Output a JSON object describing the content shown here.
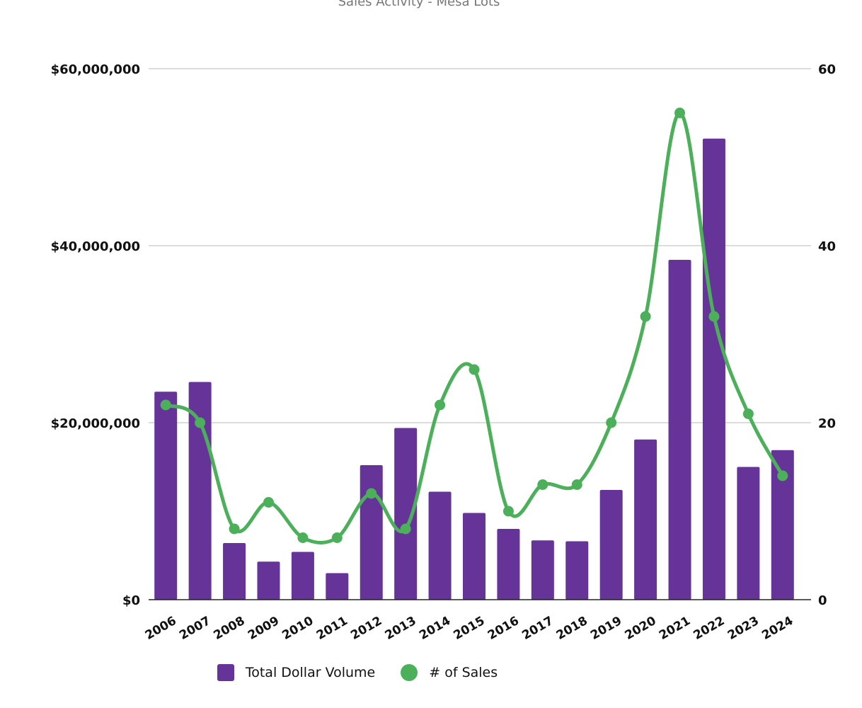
{
  "chart_data": {
    "type": "bar",
    "title": "Sales Activity - Mesa Lots",
    "categories": [
      "2006",
      "2007",
      "2008",
      "2009",
      "2010",
      "2011",
      "2012",
      "2013",
      "2014",
      "2015",
      "2016",
      "2017",
      "2018",
      "2019",
      "2020",
      "2021",
      "2022",
      "2023",
      "2024"
    ],
    "series": [
      {
        "name": "Total Dollar Volume",
        "type": "bar",
        "axis": "left",
        "color": "#663399",
        "values": [
          23500000,
          24600000,
          6400000,
          4300000,
          5400000,
          3000000,
          15200000,
          19400000,
          12200000,
          9800000,
          8000000,
          6700000,
          6600000,
          12400000,
          18100000,
          38400000,
          52100000,
          15000000,
          16900000
        ]
      },
      {
        "name": "# of Sales",
        "type": "line",
        "axis": "right",
        "color": "#4caf5a",
        "values": [
          22,
          20,
          8,
          11,
          7,
          7,
          12,
          8,
          22,
          26,
          10,
          13,
          13,
          20,
          32,
          55,
          32,
          21,
          14
        ]
      }
    ],
    "y_left": {
      "min": 0,
      "max": 60000000,
      "ticks": [
        0,
        20000000,
        40000000,
        60000000
      ],
      "tick_labels": [
        "$0",
        "$20,000,000",
        "$40,000,000",
        "$60,000,000"
      ]
    },
    "y_right": {
      "min": 0,
      "max": 60,
      "ticks": [
        0,
        20,
        40,
        60
      ],
      "tick_labels": [
        "0",
        "20",
        "40",
        "60"
      ]
    },
    "grid": true,
    "legend_position": "bottom"
  }
}
